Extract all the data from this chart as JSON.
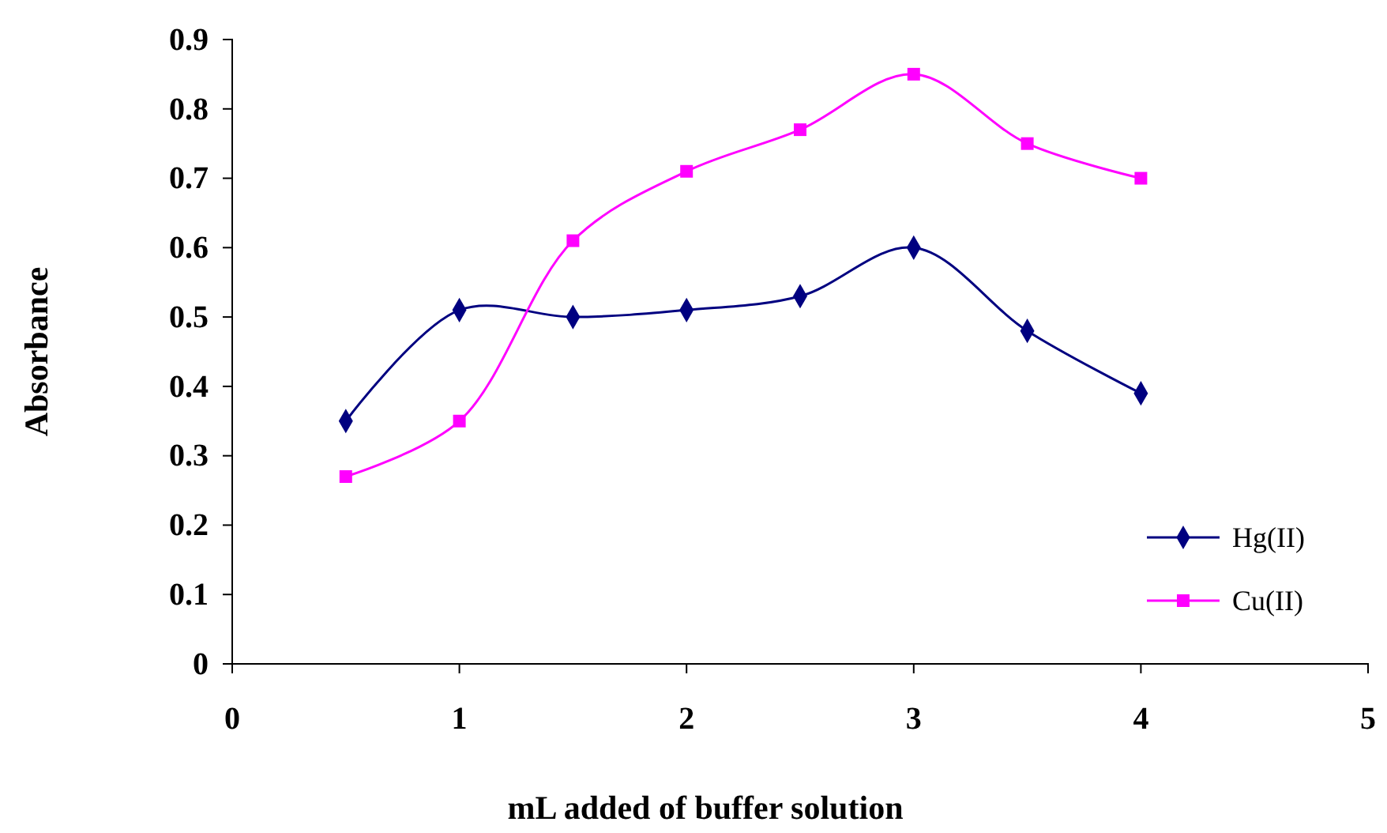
{
  "chart_data": {
    "type": "line",
    "xlabel": "mL added of buffer solution",
    "ylabel": "Absorbance",
    "x": [
      0.5,
      1,
      1.5,
      2,
      2.5,
      3,
      3.5,
      4
    ],
    "series": [
      {
        "name": "Hg(II)",
        "color": "#000080",
        "values": [
          0.35,
          0.51,
          0.5,
          0.51,
          0.53,
          0.6,
          0.48,
          0.39
        ],
        "marker": "diamond"
      },
      {
        "name": "Cu(II)",
        "color": "#ff00ff",
        "values": [
          0.27,
          0.35,
          0.61,
          0.71,
          0.77,
          0.85,
          0.75,
          0.7
        ],
        "marker": "square"
      }
    ],
    "xlim": [
      0,
      5
    ],
    "xticks": [
      0,
      1,
      2,
      3,
      4,
      5
    ],
    "ylim": [
      0,
      0.9
    ],
    "yticks": [
      0,
      0.1,
      0.2,
      0.3,
      0.4,
      0.5,
      0.6,
      0.7,
      0.8,
      0.9
    ],
    "grid": false,
    "legend": "bottom right"
  }
}
